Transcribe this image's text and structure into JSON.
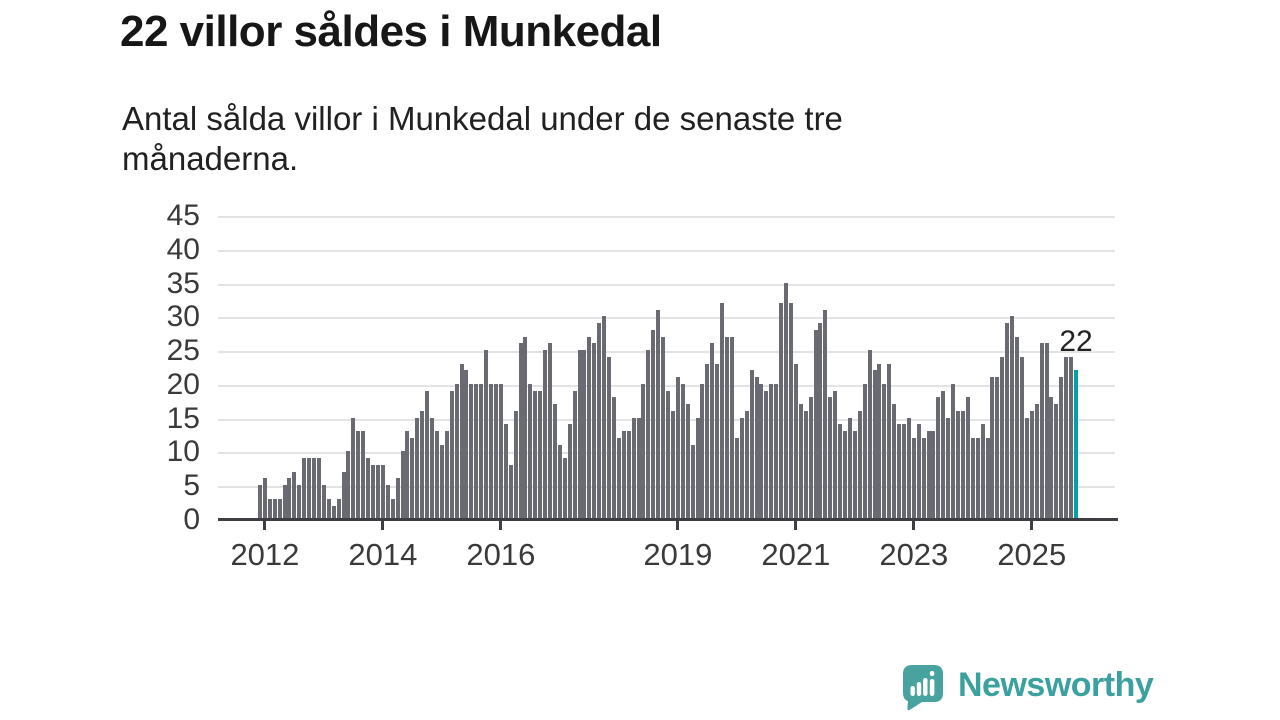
{
  "header": {
    "title": "22 villor såldes i Munkedal",
    "subtitle_lines": [
      "Antal sålda villor i Munkedal under de senaste tre",
      "månaderna."
    ]
  },
  "chart_data": {
    "type": "bar",
    "title": "22 villor såldes i Munkedal",
    "description": "Monthly bars, rolling three-month count of sold houses, Dec 2011 - Oct 2025",
    "ylim": [
      0,
      45
    ],
    "y_ticks": [
      0,
      5,
      10,
      15,
      20,
      25,
      30,
      35,
      40,
      45
    ],
    "grid": "horizontal",
    "x_ticks": [
      {
        "label": "2012",
        "index": 1
      },
      {
        "label": "2014",
        "index": 25
      },
      {
        "label": "2016",
        "index": 49
      },
      {
        "label": "2019",
        "index": 85
      },
      {
        "label": "2021",
        "index": 109
      },
      {
        "label": "2023",
        "index": 133
      },
      {
        "label": "2025",
        "index": 157
      }
    ],
    "values": [
      5,
      6,
      3,
      3,
      3,
      5,
      6,
      7,
      5,
      9,
      9,
      9,
      9,
      5,
      3,
      2,
      3,
      7,
      10,
      15,
      13,
      13,
      9,
      8,
      8,
      8,
      5,
      3,
      6,
      10,
      13,
      12,
      15,
      16,
      19,
      15,
      13,
      11,
      13,
      19,
      20,
      23,
      22,
      20,
      20,
      20,
      25,
      20,
      20,
      20,
      14,
      8,
      16,
      26,
      27,
      20,
      19,
      19,
      25,
      26,
      17,
      11,
      9,
      14,
      19,
      25,
      25,
      27,
      26,
      29,
      30,
      24,
      18,
      12,
      13,
      13,
      15,
      15,
      20,
      25,
      28,
      31,
      27,
      19,
      16,
      21,
      20,
      17,
      11,
      15,
      20,
      23,
      26,
      23,
      32,
      27,
      27,
      12,
      15,
      16,
      22,
      21,
      20,
      19,
      20,
      20,
      32,
      35,
      32,
      23,
      17,
      16,
      18,
      28,
      29,
      31,
      18,
      19,
      14,
      13,
      15,
      13,
      16,
      20,
      25,
      22,
      23,
      20,
      23,
      17,
      14,
      14,
      15,
      12,
      14,
      12,
      13,
      13,
      18,
      19,
      15,
      20,
      16,
      16,
      18,
      12,
      12,
      14,
      12,
      21,
      21,
      24,
      29,
      30,
      27,
      24,
      15,
      16,
      17,
      26,
      26,
      18,
      17,
      21,
      24,
      24,
      22
    ],
    "highlight_index": 166,
    "annotation": {
      "text": "22"
    },
    "colors": {
      "bar": "#6a6a73",
      "highlight": "#00a1a7",
      "grid": "#e3e3e3",
      "axis": "#3e3e42",
      "labels": "#3a3a3a"
    }
  },
  "branding": {
    "logo_text": "Newsworthy",
    "logo_icon": "bar-chart-speech-bubble-icon",
    "logo_color": "#3aa19e"
  }
}
